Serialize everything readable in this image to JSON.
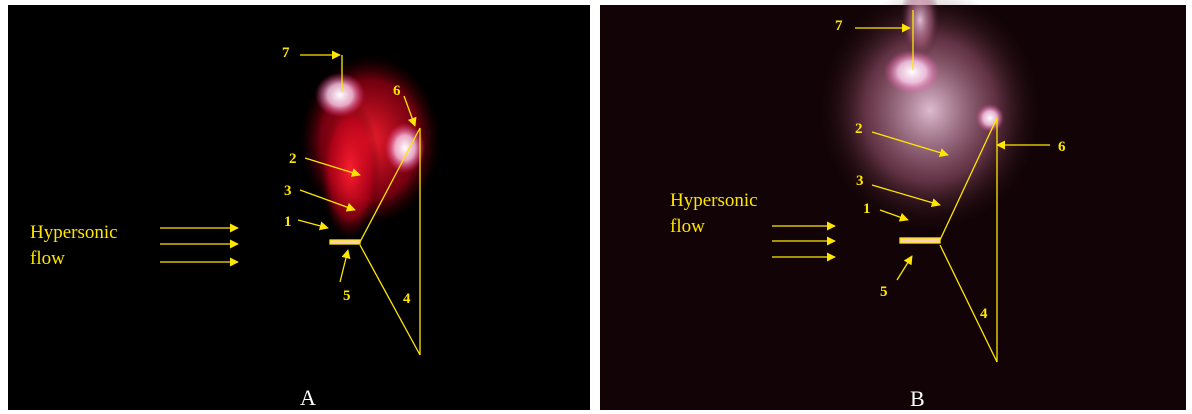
{
  "panels": [
    {
      "label": "A",
      "flow_label_lines": [
        "Hypersonic",
        "flow"
      ],
      "callouts": [
        "7",
        "6",
        "2",
        "3",
        "1",
        "5",
        "4"
      ]
    },
    {
      "label": "B",
      "flow_label_lines": [
        "Hypersonic",
        "flow"
      ],
      "callouts": [
        "7",
        "6",
        "2",
        "3",
        "1",
        "5",
        "4"
      ]
    }
  ]
}
